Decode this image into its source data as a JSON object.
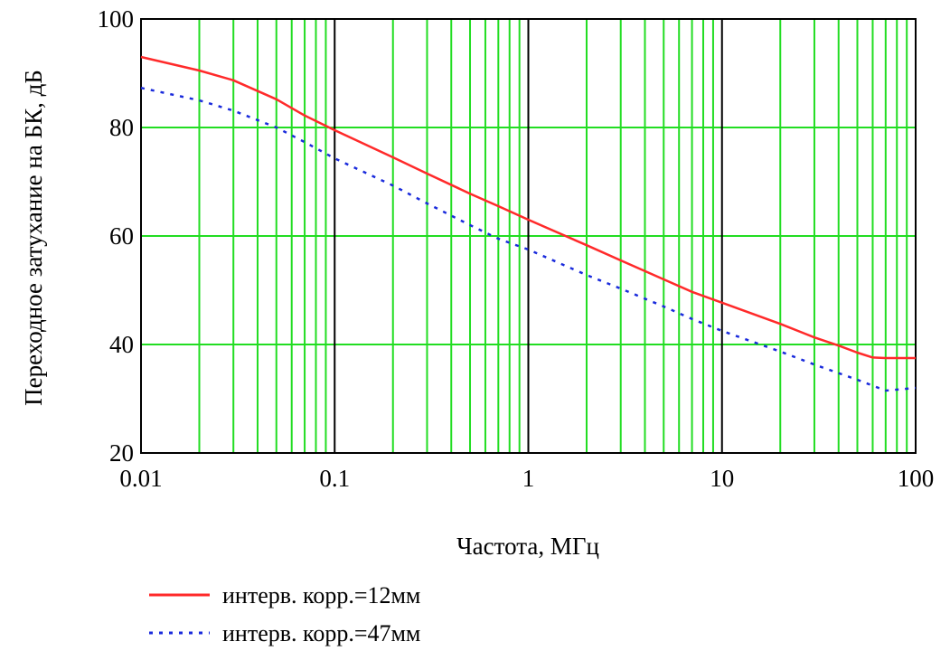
{
  "chart_data": {
    "type": "line",
    "title": "",
    "xlabel": "Частота, МГц",
    "ylabel": "Переходное затухание на БК, дБ",
    "x_scale": "log",
    "xlim": [
      0.01,
      100
    ],
    "ylim": [
      20,
      100
    ],
    "x_ticks": [
      0.01,
      0.1,
      1,
      10,
      100
    ],
    "x_tick_labels": [
      "0.01",
      "0.1",
      "1",
      "10",
      "100"
    ],
    "y_ticks": [
      20,
      40,
      60,
      80,
      100
    ],
    "y_tick_labels": [
      "20",
      "40",
      "60",
      "80",
      "100"
    ],
    "grid": true,
    "legend_position": "bottom-left",
    "colors": {
      "grid_minor": "#22dd22",
      "grid_decade": "#000000",
      "series_12mm": "#ff2a2a",
      "series_47mm": "#1a2bdc"
    },
    "series": [
      {
        "name": "интерв. корр.=12мм",
        "style": "solid",
        "x": [
          0.01,
          0.02,
          0.03,
          0.05,
          0.07,
          0.1,
          0.2,
          0.3,
          0.5,
          0.7,
          1,
          2,
          3,
          5,
          7,
          10,
          20,
          30,
          40,
          50,
          60,
          70,
          100
        ],
        "y": [
          93,
          90.5,
          88.7,
          85.2,
          82.2,
          79.5,
          74.5,
          71.5,
          67.8,
          65.5,
          63,
          58.3,
          55.5,
          52,
          49.7,
          47.7,
          43.8,
          41.3,
          39.8,
          38.5,
          37.6,
          37.5,
          37.5
        ]
      },
      {
        "name": "интерв. корр.=47мм",
        "style": "dotted",
        "x": [
          0.01,
          0.02,
          0.03,
          0.05,
          0.07,
          0.1,
          0.2,
          0.3,
          0.5,
          0.7,
          1,
          2,
          3,
          5,
          7,
          10,
          20,
          30,
          50,
          70,
          100
        ],
        "y": [
          87.3,
          85,
          83.1,
          80,
          77.3,
          74.3,
          69.3,
          66,
          62,
          59.5,
          57.5,
          52.8,
          50.3,
          47,
          44.7,
          42.5,
          38.7,
          36.3,
          33.5,
          31.5,
          32
        ]
      }
    ]
  }
}
